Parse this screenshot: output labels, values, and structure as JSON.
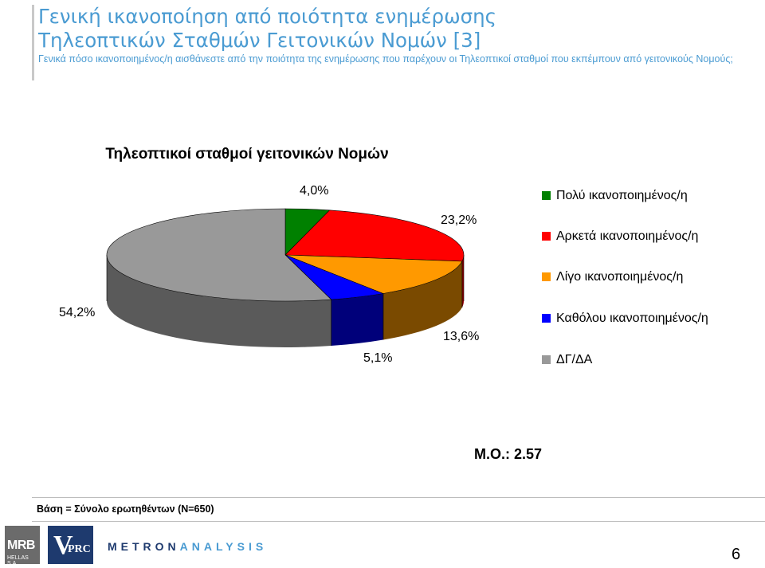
{
  "header": {
    "title_line1": "Γενική ικανοποίηση από ποιότητα ενημέρωσης",
    "title_line2": "Τηλεοπτικών Σταθμών Γειτονικών Νομών [3]",
    "subtitle": "Γενικά πόσο ικανοποιημένος/η αισθάνεστε από την ποιότητα της ενημέρωσης που παρέχουν οι Τηλεοπτικοί σταθμοί που εκπέμπουν από γειτονικούς Νομούς;"
  },
  "chart_data": {
    "type": "pie",
    "title": "Τηλεοπτικοί σταθμοί γειτονικών Νομών",
    "categories": [
      "Πολύ ικανοποιημένος/η",
      "Αρκετά ικανοποιημένος/η",
      "Λίγο ικανοποιημένος/η",
      "Καθόλου ικανοποιημένος/η",
      "ΔΓ/ΔΑ"
    ],
    "values": [
      4.0,
      23.2,
      13.6,
      5.1,
      54.2
    ],
    "labels": [
      "4,0%",
      "23,2%",
      "13,6%",
      "5,1%",
      "54,2%"
    ],
    "colors": [
      "#008000",
      "#ff0000",
      "#ff9900",
      "#0000ff",
      "#999999"
    ],
    "side_colors": [
      "#004d00",
      "#990000",
      "#7a4a00",
      "#00007a",
      "#5a5a5a"
    ],
    "legend_position": "right",
    "three_d": true
  },
  "legend": {
    "items": [
      {
        "label": "Πολύ ικανοποιημένος/η",
        "color": "#008000"
      },
      {
        "label": "Αρκετά ικανοποιημένος/η",
        "color": "#ff0000"
      },
      {
        "label": "Λίγο ικανοποιημένος/η",
        "color": "#ff9900"
      },
      {
        "label": "Καθόλου ικανοποιημένος/η",
        "color": "#0000ff"
      },
      {
        "label": "ΔΓ/ΔΑ",
        "color": "#999999"
      }
    ]
  },
  "mean_text": "Μ.Ο.: 2.57",
  "base_text": "Βάση = Σύνολο ερωτηθέντων (N=650)",
  "footer": {
    "logo_mrb": "MRB",
    "logo_mrb_sub": "HELLAS S.A.",
    "logo_vprc_v": "V",
    "logo_vprc_rest": "PRC",
    "logo_metron_a": "METRON",
    "logo_metron_b": "ANALYSIS",
    "page_number": "6"
  }
}
